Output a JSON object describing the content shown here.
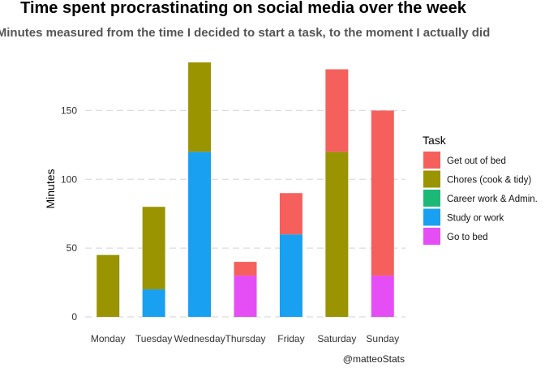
{
  "chart_data": {
    "type": "bar",
    "stacked": true,
    "title": "Time spent procrastinating on social media over the week",
    "subtitle": "Minutes measured from the time I decided to start a task, to the moment I actually did",
    "xlabel": "",
    "ylabel": "Minutes",
    "caption": "@matteoStats",
    "categories": [
      "Monday",
      "Tuesday",
      "Wednesday",
      "Thursday",
      "Friday",
      "Saturday",
      "Sunday"
    ],
    "ylim": [
      0,
      185
    ],
    "yticks": [
      0,
      50,
      100,
      150
    ],
    "grid": true,
    "legend": {
      "title": "Task",
      "position": "right"
    },
    "series": [
      {
        "name": "Go to bed",
        "color": "#E64EF5",
        "values": [
          0,
          0,
          0,
          30,
          0,
          0,
          30
        ]
      },
      {
        "name": "Study or work",
        "color": "#19A0F0",
        "values": [
          0,
          20,
          120,
          0,
          60,
          0,
          0
        ]
      },
      {
        "name": "Career work & Admin.",
        "color": "#1CB877",
        "values": [
          0,
          0,
          0,
          0,
          0,
          0,
          0
        ]
      },
      {
        "name": "Chores (cook & tidy)",
        "color": "#999400",
        "values": [
          45,
          60,
          65,
          0,
          0,
          120,
          0
        ]
      },
      {
        "name": "Get out of bed",
        "color": "#F5605C",
        "values": [
          0,
          0,
          0,
          10,
          30,
          60,
          120
        ]
      }
    ],
    "legend_order": [
      "Get out of bed",
      "Chores (cook & tidy)",
      "Career work & Admin.",
      "Study or work",
      "Go to bed"
    ]
  }
}
